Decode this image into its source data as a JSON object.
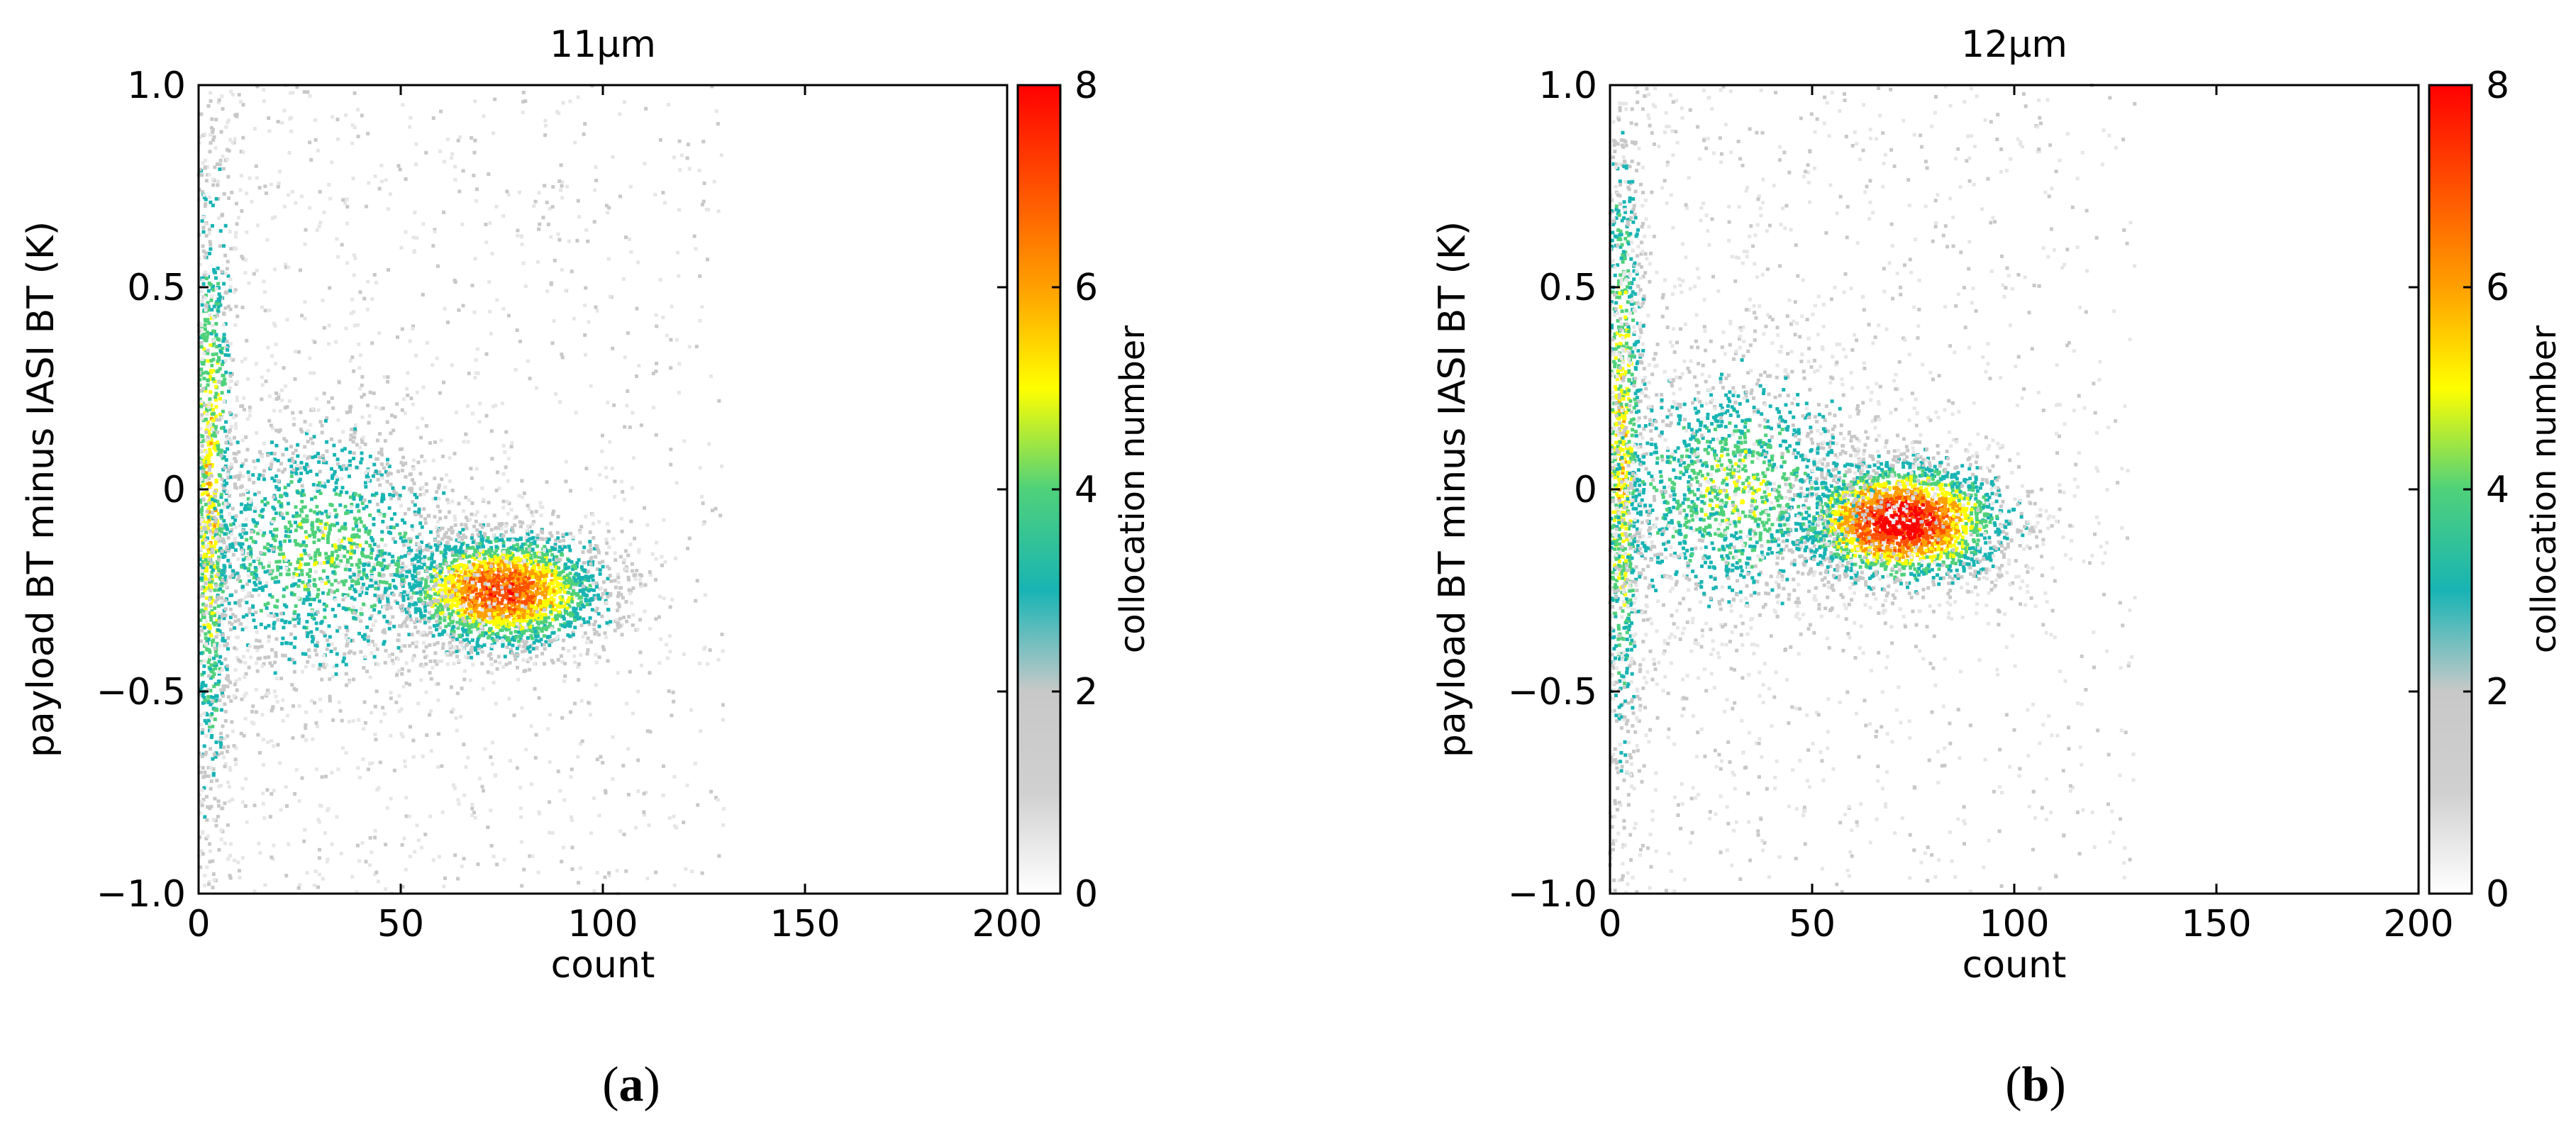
{
  "chart_data": [
    {
      "type": "heatmap",
      "title": "11μm",
      "xlabel": "count",
      "ylabel": "payload BT minus IASI BT (K)",
      "xlim": [
        0,
        200
      ],
      "ylim": [
        -1.0,
        1.0
      ],
      "xticks": [
        "0",
        "50",
        "100",
        "150",
        "200"
      ],
      "yticks": [
        "1.0",
        "0.5",
        "0",
        "−0.5",
        "−1.0"
      ],
      "colorbar": {
        "label": "collocation number",
        "range": [
          0,
          8
        ],
        "ticks": [
          "8",
          "6",
          "4",
          "2",
          "0"
        ]
      },
      "clusters": [
        {
          "center": [
            75,
            -0.25
          ],
          "spread": [
            14,
            0.08
          ],
          "peak": 6
        },
        {
          "center": [
            3,
            0.0
          ],
          "spread": [
            3,
            0.45
          ],
          "peak": 4
        },
        {
          "center": [
            30,
            -0.15
          ],
          "spread": [
            20,
            0.18
          ],
          "peak": 3
        }
      ],
      "subpanel_label": "a"
    },
    {
      "type": "heatmap",
      "title": "12μm",
      "xlabel": "count",
      "ylabel": "payload BT minus IASI BT (K)",
      "xlim": [
        0,
        200
      ],
      "ylim": [
        -1.0,
        1.0
      ],
      "xticks": [
        "0",
        "50",
        "100",
        "150",
        "200"
      ],
      "yticks": [
        "1.0",
        "0.5",
        "0",
        "−0.5",
        "−1.0"
      ],
      "colorbar": {
        "label": "collocation number",
        "range": [
          0,
          8
        ],
        "ticks": [
          "8",
          "6",
          "4",
          "2",
          "0"
        ]
      },
      "clusters": [
        {
          "center": [
            72,
            -0.08
          ],
          "spread": [
            14,
            0.08
          ],
          "peak": 7
        },
        {
          "center": [
            3,
            0.1
          ],
          "spread": [
            3,
            0.45
          ],
          "peak": 4
        },
        {
          "center": [
            30,
            0.0
          ],
          "spread": [
            20,
            0.18
          ],
          "peak": 3
        }
      ],
      "subpanel_label": "b"
    }
  ],
  "colors": {
    "scale": [
      "#e6e6e6",
      "#c8c8c8",
      "#18b4b4",
      "#4fd17a",
      "#ffff00",
      "#ffa000",
      "#ff5000",
      "#ff0000"
    ]
  }
}
